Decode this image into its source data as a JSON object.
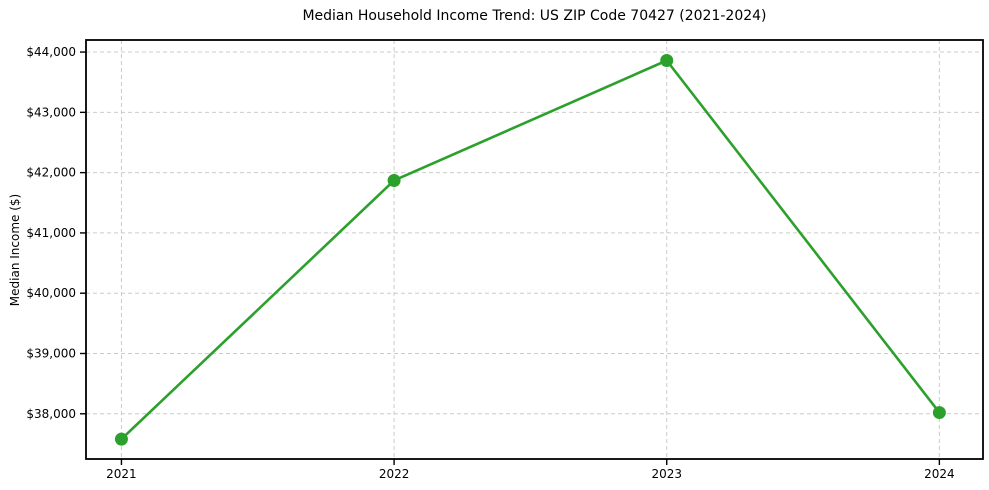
{
  "chart_data": {
    "type": "line",
    "title": "Median Household Income Trend: US ZIP Code 70427 (2021-2024)",
    "xlabel": "",
    "ylabel": "Median Income ($)",
    "categories": [
      "2021",
      "2022",
      "2023",
      "2024"
    ],
    "x": [
      2021,
      2022,
      2023,
      2024
    ],
    "values": [
      37580,
      41870,
      43860,
      38020
    ],
    "ytick_values": [
      38000,
      39000,
      40000,
      41000,
      42000,
      43000,
      44000
    ],
    "ytick_labels": [
      "$38,000",
      "$39,000",
      "$40,000",
      "$41,000",
      "$42,000",
      "$43,000",
      "$44,000"
    ],
    "xlim": [
      2020.87,
      2024.16
    ],
    "ylim": [
      37250,
      44200
    ],
    "grid": true,
    "grid_style": "dashed",
    "legend_position": "none",
    "marker": "circle",
    "colors": {
      "line": "#2ca02c",
      "grid": "#cccccc",
      "axis": "#000000",
      "text": "#000000"
    }
  }
}
